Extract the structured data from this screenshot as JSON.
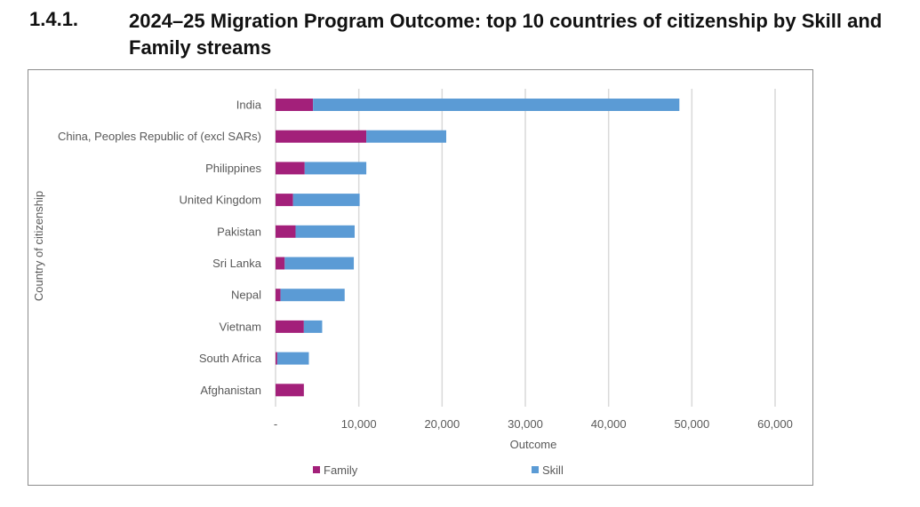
{
  "heading": {
    "number": "1.4.1.",
    "title": "2024–25 Migration Program Outcome: top 10 countries of citizenship by Skill and Family streams"
  },
  "chart_data": {
    "type": "bar",
    "orientation": "horizontal",
    "stacked": true,
    "title": "",
    "xlabel": "Outcome",
    "ylabel": "Country of citizenship",
    "xlim": [
      0,
      60000
    ],
    "xticks": [
      0,
      10000,
      20000,
      30000,
      40000,
      50000,
      60000
    ],
    "xtick_labels": [
      "-",
      "10,000",
      "20,000",
      "30,000",
      "40,000",
      "50,000",
      "60,000"
    ],
    "grid": "vertical",
    "legend": "bottom",
    "categories": [
      "India",
      "China, Peoples Republic of (excl SARs)",
      "Philippines",
      "United Kingdom",
      "Pakistan",
      "Sri Lanka",
      "Nepal",
      "Vietnam",
      "South Africa",
      "Afghanistan"
    ],
    "series": [
      {
        "name": "Family",
        "color": "#a3207a",
        "values": [
          4500,
          10900,
          3500,
          2100,
          2400,
          1100,
          600,
          3400,
          200,
          3400
        ]
      },
      {
        "name": "Skill",
        "color": "#5b9bd5",
        "values": [
          44000,
          9600,
          7400,
          8000,
          7100,
          8300,
          7700,
          2200,
          3800,
          0
        ]
      }
    ]
  }
}
